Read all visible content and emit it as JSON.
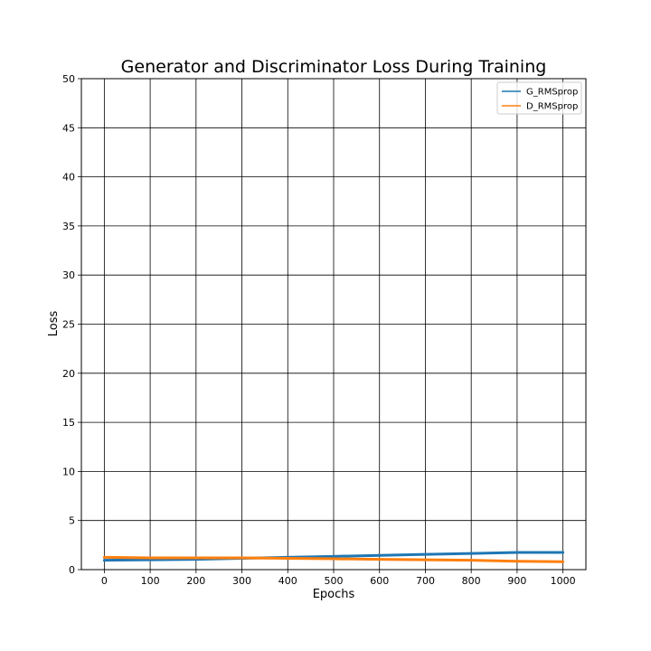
{
  "chart_data": {
    "type": "line",
    "title": "Generator and Discriminator Loss During Training",
    "xlabel": "Epochs",
    "ylabel": "Loss",
    "xlim": [
      -50,
      1050
    ],
    "ylim": [
      0,
      50
    ],
    "xticks": [
      0,
      100,
      200,
      300,
      400,
      500,
      600,
      700,
      800,
      900,
      1000
    ],
    "yticks": [
      0,
      5,
      10,
      15,
      20,
      25,
      30,
      35,
      40,
      45,
      50
    ],
    "grid": true,
    "legend": "top-right",
    "x": [
      0,
      100,
      200,
      300,
      400,
      500,
      600,
      700,
      800,
      900,
      1000
    ],
    "series": [
      {
        "name": "G_RMSprop",
        "color": "#1f77b4",
        "values": [
          0.95,
          1.0,
          1.05,
          1.15,
          1.25,
          1.35,
          1.45,
          1.55,
          1.65,
          1.75,
          1.75
        ]
      },
      {
        "name": "D_RMSprop",
        "color": "#ff7f0e",
        "values": [
          1.25,
          1.2,
          1.2,
          1.2,
          1.15,
          1.1,
          1.05,
          1.0,
          0.95,
          0.85,
          0.8
        ]
      }
    ]
  }
}
